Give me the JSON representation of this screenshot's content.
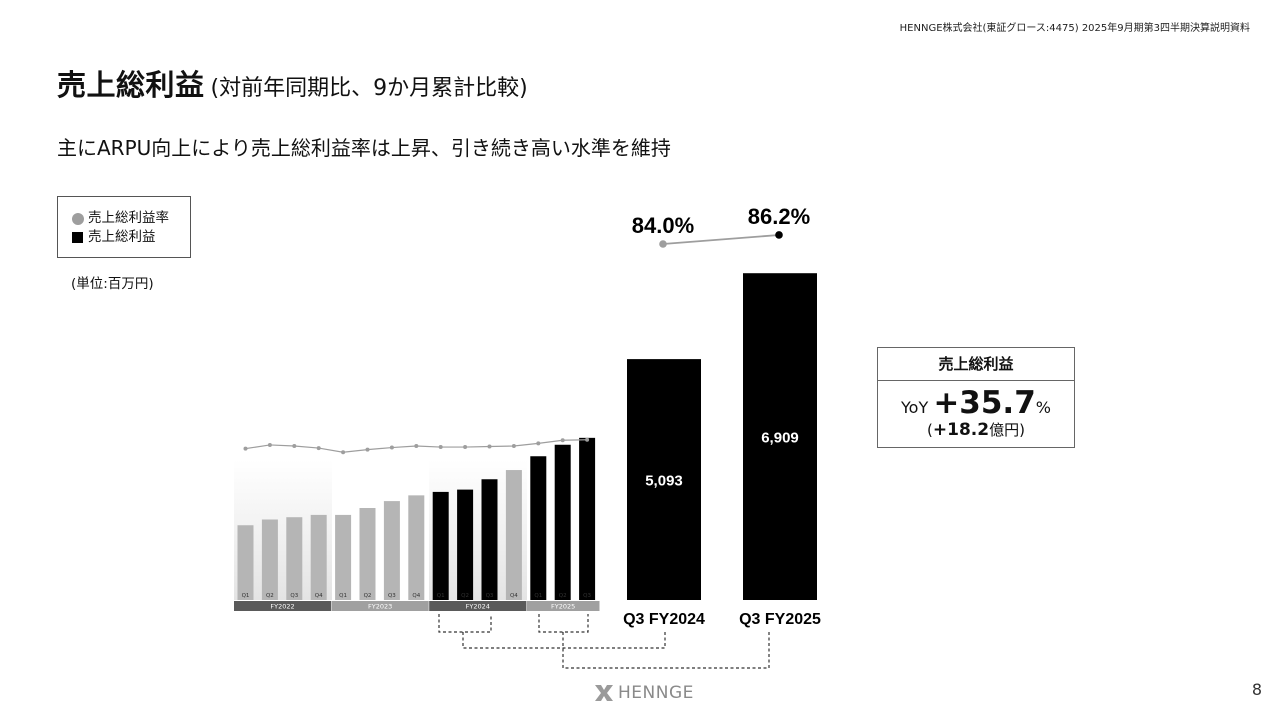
{
  "header_note": "HENNGE株式会社(東証グロース:4475) 2025年9月期第3四半期決算説明資料",
  "title": "売上総利益",
  "title_sub": "(対前年同期比、9か月累計比較)",
  "subtitle": "主にARPU向上により売上総利益率は上昇、引き続き高い水準を維持",
  "legend": {
    "rate_label": "売上総利益率",
    "profit_label": "売上総利益"
  },
  "unit": "(単位:百万円)",
  "yoy_box": {
    "header": "売上総利益",
    "yoy_prefix": "YoY",
    "yoy_value": "+35.7",
    "yoy_unit": "%",
    "diff_open": "(",
    "diff_value": "+18.2",
    "diff_unit": "億円)"
  },
  "logo_text": "HENNGE",
  "page_number": "8",
  "colors": {
    "black": "#000000",
    "gray_bar": "#b5b5b5",
    "rate_line": "#9e9e9e",
    "fy_label_dark": "#5a5a5a",
    "fy_label_light": "#a0a0a0"
  },
  "chart_data": [
    {
      "type": "bar",
      "title": "",
      "categories": [
        "Q3 FY2024",
        "Q3 FY2025"
      ],
      "series": [
        {
          "name": "売上総利益",
          "values": [
            5093,
            6909
          ]
        },
        {
          "name": "売上総利益率",
          "values": [
            84.0,
            86.2
          ],
          "unit": "%"
        }
      ],
      "value_labels": [
        "5,093",
        "6,909"
      ],
      "rate_labels": [
        "84.0%",
        "86.2%"
      ]
    },
    {
      "type": "bar",
      "title": "",
      "note": "quarterly bars, values unlabeled (estimated)",
      "groups": [
        {
          "label": "FY2022",
          "quarters": [
            "Q1",
            "Q2",
            "Q3",
            "Q4"
          ],
          "values": [
            650,
            700,
            720,
            740
          ]
        },
        {
          "label": "FY2023",
          "quarters": [
            "Q1",
            "Q2",
            "Q3",
            "Q4"
          ],
          "values": [
            740,
            800,
            860,
            910
          ]
        },
        {
          "label": "FY2024",
          "quarters": [
            "Q1",
            "Q2",
            "Q3",
            "Q4"
          ],
          "values": [
            940,
            960,
            1050,
            1130
          ]
        },
        {
          "label": "FY2025",
          "quarters": [
            "Q1",
            "Q2",
            "Q3"
          ],
          "values": [
            1250,
            1350,
            1410
          ]
        }
      ],
      "rate_values": [
        83.5,
        84.2,
        84.0,
        83.6,
        82.8,
        83.3,
        83.7,
        84.0,
        83.8,
        83.8,
        83.9,
        84.0,
        84.5,
        85.1,
        85.2
      ]
    }
  ]
}
